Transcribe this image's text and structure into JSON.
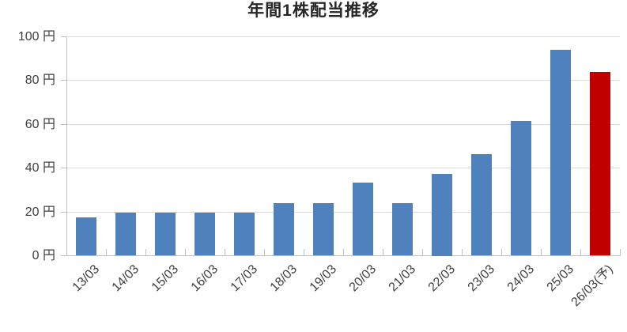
{
  "chart_data": {
    "type": "bar",
    "title": "年間1株配当推移",
    "unit": "円",
    "categories": [
      "13/03",
      "14/03",
      "15/03",
      "16/03",
      "17/03",
      "18/03",
      "19/03",
      "20/03",
      "21/03",
      "22/03",
      "23/03",
      "24/03",
      "25/03",
      "26/03(予)"
    ],
    "values": [
      17.5,
      19.5,
      19.5,
      19.5,
      19.5,
      24,
      24,
      33.5,
      24,
      37.5,
      46.5,
      61.5,
      94,
      84
    ],
    "forecast_index": 13,
    "y_ticks": [
      0,
      20,
      40,
      60,
      80,
      100
    ],
    "y_tick_labels": [
      "0 円",
      "20 円",
      "40 円",
      "60 円",
      "80 円",
      "100 円"
    ],
    "ylim": [
      0,
      100
    ],
    "grid": true,
    "legend": false,
    "colors": {
      "bar_default": "#4F81BD",
      "bar_forecast": "#C00000",
      "gridline": "#D9D9D9",
      "axis": "#BFBFBF",
      "tick_label": "#404040",
      "title": "#262626"
    }
  }
}
